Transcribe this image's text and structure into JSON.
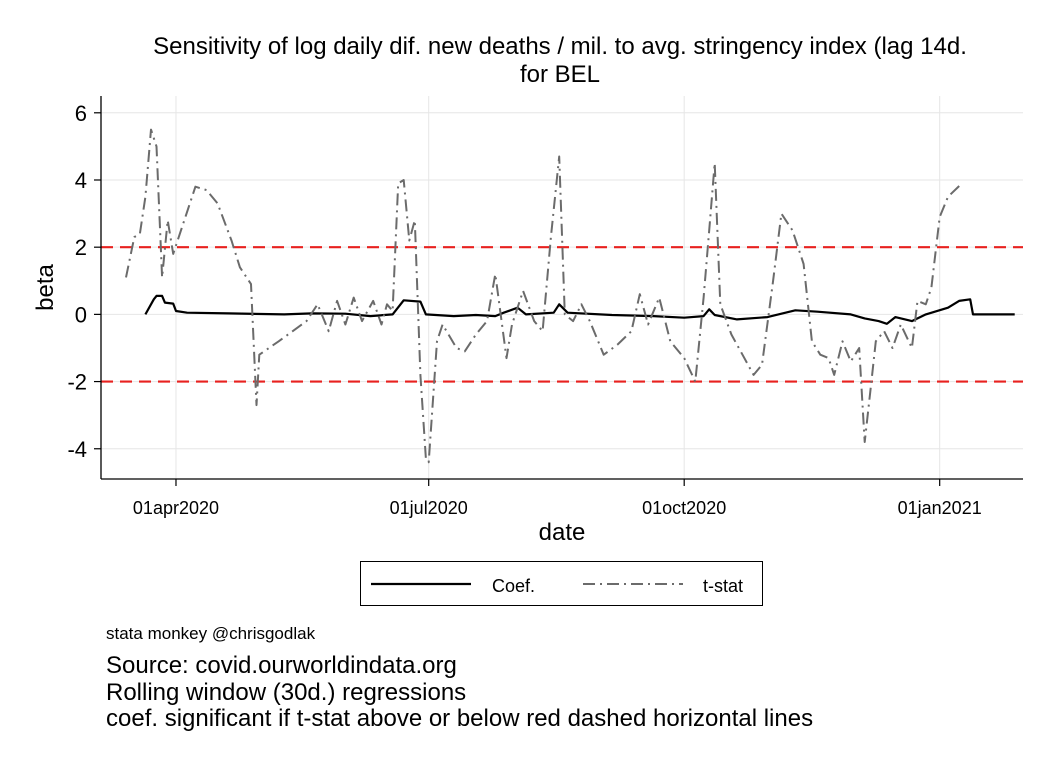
{
  "title_line1": "Sensitivity of log daily dif. new deaths / mil. to avg. stringency index (lag 14d.",
  "title_line2": "for BEL",
  "chart_data": {
    "type": "line",
    "xlabel": "date",
    "ylabel": "beta",
    "x_ticks": [
      "01apr2020",
      "01jul2020",
      "01oct2020",
      "01jan2021"
    ],
    "y_ticks": [
      6,
      4,
      2,
      0,
      -2,
      -4
    ],
    "ylim": [
      -4.9,
      6.5
    ],
    "xlim": [
      "2020-03-05",
      "2021-01-31"
    ],
    "grid": true,
    "reference_lines": [
      {
        "y": 2,
        "color": "#e8211f",
        "style": "dashed"
      },
      {
        "y": -2,
        "color": "#e8211f",
        "style": "dashed"
      }
    ],
    "legend": {
      "position": "bottom",
      "entries": [
        "Coef.",
        "t-stat"
      ]
    },
    "series": [
      {
        "name": "Coef.",
        "color": "#000000",
        "style": "solid",
        "points": [
          [
            "2020-03-21",
            0.0
          ],
          [
            "2020-03-24",
            0.45
          ],
          [
            "2020-03-25",
            0.55
          ],
          [
            "2020-03-27",
            0.55
          ],
          [
            "2020-03-28",
            0.35
          ],
          [
            "2020-03-31",
            0.32
          ],
          [
            "2020-04-01",
            0.1
          ],
          [
            "2020-04-05",
            0.05
          ],
          [
            "2020-04-20",
            0.03
          ],
          [
            "2020-05-10",
            0.0
          ],
          [
            "2020-05-20",
            0.03
          ],
          [
            "2020-06-01",
            0.02
          ],
          [
            "2020-06-10",
            -0.05
          ],
          [
            "2020-06-18",
            0.0
          ],
          [
            "2020-06-22",
            0.42
          ],
          [
            "2020-06-28",
            0.38
          ],
          [
            "2020-06-30",
            0.0
          ],
          [
            "2020-07-10",
            -0.05
          ],
          [
            "2020-07-18",
            -0.02
          ],
          [
            "2020-07-25",
            -0.05
          ],
          [
            "2020-07-28",
            0.05
          ],
          [
            "2020-08-02",
            0.2
          ],
          [
            "2020-08-05",
            0.0
          ],
          [
            "2020-08-15",
            0.05
          ],
          [
            "2020-08-17",
            0.3
          ],
          [
            "2020-08-20",
            0.05
          ],
          [
            "2020-09-05",
            -0.02
          ],
          [
            "2020-09-20",
            -0.05
          ],
          [
            "2020-10-01",
            -0.1
          ],
          [
            "2020-10-08",
            -0.05
          ],
          [
            "2020-10-10",
            0.15
          ],
          [
            "2020-10-12",
            -0.02
          ],
          [
            "2020-10-20",
            -0.15
          ],
          [
            "2020-10-31",
            -0.08
          ],
          [
            "2020-11-10",
            0.12
          ],
          [
            "2020-11-18",
            0.08
          ],
          [
            "2020-11-30",
            0.0
          ],
          [
            "2020-12-05",
            -0.12
          ],
          [
            "2020-12-10",
            -0.2
          ],
          [
            "2020-12-13",
            -0.28
          ],
          [
            "2020-12-16",
            -0.08
          ],
          [
            "2020-12-22",
            -0.2
          ],
          [
            "2020-12-27",
            0.0
          ],
          [
            "2021-01-04",
            0.2
          ],
          [
            "2021-01-08",
            0.4
          ],
          [
            "2021-01-12",
            0.45
          ],
          [
            "2021-01-13",
            0.0
          ],
          [
            "2021-01-28",
            0.0
          ]
        ]
      },
      {
        "name": "t-stat",
        "color": "#6b6b6b",
        "style": "long-dash-dot",
        "points": [
          [
            "2020-03-14",
            1.1
          ],
          [
            "2020-03-17",
            2.3
          ],
          [
            "2020-03-19",
            2.4
          ],
          [
            "2020-03-21",
            3.5
          ],
          [
            "2020-03-23",
            5.5
          ],
          [
            "2020-03-25",
            5.0
          ],
          [
            "2020-03-27",
            1.1
          ],
          [
            "2020-03-29",
            2.8
          ],
          [
            "2020-03-31",
            1.8
          ],
          [
            "2020-04-04",
            2.8
          ],
          [
            "2020-04-08",
            3.8
          ],
          [
            "2020-04-12",
            3.7
          ],
          [
            "2020-04-16",
            3.3
          ],
          [
            "2020-04-21",
            2.2
          ],
          [
            "2020-04-24",
            1.4
          ],
          [
            "2020-04-28",
            0.9
          ],
          [
            "2020-04-30",
            -2.7
          ],
          [
            "2020-05-01",
            -1.2
          ],
          [
            "2020-05-08",
            -0.8
          ],
          [
            "2020-05-18",
            -0.2
          ],
          [
            "2020-05-22",
            0.3
          ],
          [
            "2020-05-26",
            -0.5
          ],
          [
            "2020-05-29",
            0.4
          ],
          [
            "2020-06-01",
            -0.3
          ],
          [
            "2020-06-04",
            0.5
          ],
          [
            "2020-06-07",
            -0.2
          ],
          [
            "2020-06-11",
            0.4
          ],
          [
            "2020-06-14",
            -0.3
          ],
          [
            "2020-06-16",
            0.3
          ],
          [
            "2020-06-18",
            0.1
          ],
          [
            "2020-06-20",
            3.9
          ],
          [
            "2020-06-22",
            4.0
          ],
          [
            "2020-06-24",
            2.2
          ],
          [
            "2020-06-26",
            2.8
          ],
          [
            "2020-06-28",
            -1.8
          ],
          [
            "2020-06-30",
            -4.3
          ],
          [
            "2020-07-01",
            -4.4
          ],
          [
            "2020-07-04",
            -0.8
          ],
          [
            "2020-07-06",
            -0.3
          ],
          [
            "2020-07-11",
            -1.0
          ],
          [
            "2020-07-14",
            -1.1
          ],
          [
            "2020-07-18",
            -0.6
          ],
          [
            "2020-07-22",
            -0.2
          ],
          [
            "2020-07-25",
            1.2
          ],
          [
            "2020-07-29",
            -1.3
          ],
          [
            "2020-07-31",
            -0.3
          ],
          [
            "2020-08-04",
            0.7
          ],
          [
            "2020-08-08",
            -0.2
          ],
          [
            "2020-08-11",
            -0.5
          ],
          [
            "2020-08-14",
            2.3
          ],
          [
            "2020-08-17",
            4.7
          ],
          [
            "2020-08-19",
            0.0
          ],
          [
            "2020-08-22",
            -0.2
          ],
          [
            "2020-08-25",
            0.3
          ],
          [
            "2020-08-28",
            -0.2
          ],
          [
            "2020-09-02",
            -1.2
          ],
          [
            "2020-09-07",
            -0.9
          ],
          [
            "2020-09-12",
            -0.5
          ],
          [
            "2020-09-15",
            0.6
          ],
          [
            "2020-09-18",
            -0.3
          ],
          [
            "2020-09-22",
            0.5
          ],
          [
            "2020-09-26",
            -0.8
          ],
          [
            "2020-10-01",
            -1.3
          ],
          [
            "2020-10-05",
            -2.0
          ],
          [
            "2020-10-08",
            0.5
          ],
          [
            "2020-10-10",
            2.5
          ],
          [
            "2020-10-12",
            4.5
          ],
          [
            "2020-10-14",
            0.3
          ],
          [
            "2020-10-18",
            -0.6
          ],
          [
            "2020-10-22",
            -1.2
          ],
          [
            "2020-10-26",
            -1.8
          ],
          [
            "2020-10-29",
            -1.5
          ],
          [
            "2020-11-02",
            1.0
          ],
          [
            "2020-11-05",
            3.0
          ],
          [
            "2020-11-09",
            2.5
          ],
          [
            "2020-11-13",
            1.5
          ],
          [
            "2020-11-16",
            -0.8
          ],
          [
            "2020-11-19",
            -1.2
          ],
          [
            "2020-11-22",
            -1.3
          ],
          [
            "2020-11-24",
            -1.8
          ],
          [
            "2020-11-27",
            -0.8
          ],
          [
            "2020-11-30",
            -1.4
          ],
          [
            "2020-12-03",
            -1.0
          ],
          [
            "2020-12-05",
            -3.8
          ],
          [
            "2020-12-07",
            -2.3
          ],
          [
            "2020-12-09",
            -0.8
          ],
          [
            "2020-12-12",
            -0.5
          ],
          [
            "2020-12-15",
            -1.0
          ],
          [
            "2020-12-18",
            -0.3
          ],
          [
            "2020-12-22",
            -1.0
          ],
          [
            "2020-12-24",
            0.4
          ],
          [
            "2020-12-27",
            0.3
          ],
          [
            "2020-12-29",
            0.8
          ],
          [
            "2021-01-01",
            2.9
          ],
          [
            "2021-01-04",
            3.5
          ],
          [
            "2021-01-09",
            3.9
          ]
        ]
      }
    ]
  },
  "legend_labels": {
    "coef": "Coef.",
    "tstat": "t-stat"
  },
  "footer": {
    "credit": "stata monkey @chrisgodlak",
    "source": "Source: covid.ourworldindata.org",
    "method": "Rolling window (30d.) regressions",
    "note": "coef. significant if t-stat above or below red dashed horizontal lines"
  }
}
